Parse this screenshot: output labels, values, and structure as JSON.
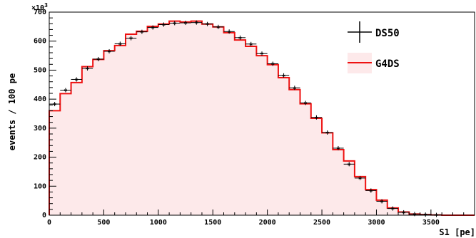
{
  "chart_data": {
    "type": "histogram",
    "xlabel": "S1 [pe]",
    "ylabel": "events / 100 pe",
    "y_multiplier_label": "×10",
    "y_multiplier_exp": "3",
    "xlim": [
      0,
      3900
    ],
    "ylim": [
      0,
      700
    ],
    "x_ticks": [
      0,
      500,
      1000,
      1500,
      2000,
      2500,
      3000,
      3500
    ],
    "y_ticks": [
      0,
      100,
      200,
      300,
      400,
      500,
      600,
      700
    ],
    "bin_edges": [
      0,
      100,
      200,
      300,
      400,
      500,
      600,
      700,
      800,
      900,
      1000,
      1100,
      1200,
      1300,
      1400,
      1500,
      1600,
      1700,
      1800,
      1900,
      2000,
      2100,
      2200,
      2300,
      2400,
      2500,
      2600,
      2700,
      2800,
      2900,
      3000,
      3100,
      3200,
      3300,
      3400,
      3500,
      3600,
      3700,
      3800,
      3900
    ],
    "legend_position": "top-right",
    "series": [
      {
        "name": "DS50",
        "style": "points-with-error-bars",
        "color": "#000000",
        "values": [
          383,
          431,
          468,
          506,
          538,
          565,
          591,
          610,
          632,
          647,
          657,
          662,
          663,
          664,
          659,
          649,
          633,
          612,
          590,
          557,
          522,
          482,
          439,
          387,
          337,
          285,
          231,
          176,
          128,
          85,
          48,
          23,
          10,
          4,
          2,
          1,
          0,
          0,
          0
        ]
      },
      {
        "name": "G4DS",
        "style": "step-filled",
        "color": "#ee1111",
        "fill": "#fde9ea",
        "values": [
          360,
          419,
          457,
          512,
          537,
          567,
          585,
          624,
          634,
          651,
          659,
          669,
          666,
          669,
          659,
          649,
          629,
          604,
          582,
          550,
          519,
          474,
          433,
          384,
          334,
          284,
          226,
          187,
          133,
          88,
          52,
          25,
          11,
          4,
          2,
          1,
          0,
          0,
          0
        ]
      }
    ]
  }
}
